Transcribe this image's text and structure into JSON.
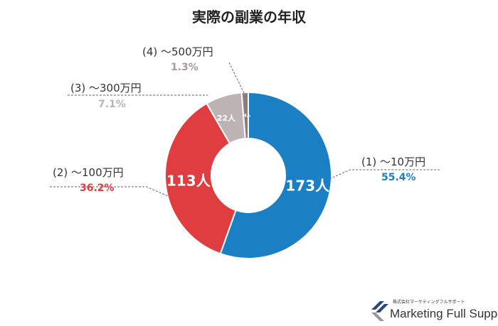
{
  "chart_data": {
    "type": "pie",
    "donut": true,
    "title": "実際の副業の年収",
    "categories": [
      "(1) ～10万円",
      "(2) ～100万円",
      "(3) ～300万円",
      "(4) ～500万円"
    ],
    "values": [
      173,
      113,
      22,
      4
    ],
    "value_labels": [
      "173人",
      "113人",
      "22人",
      "4人"
    ],
    "percent_labels": [
      "55.4%",
      "36.2%",
      "7.1%",
      "1.3%"
    ],
    "colors": [
      "#1b80c3",
      "#e03d40",
      "#bdb2b4",
      "#8e7b7b"
    ],
    "percent_colors": [
      "#1b80c3",
      "#e03d40",
      "#bdb2b4",
      "#a89a9c"
    ]
  },
  "logo": {
    "subtitle": "株式会社マーケティングフルサポート",
    "name": "Marketing Full Support"
  }
}
